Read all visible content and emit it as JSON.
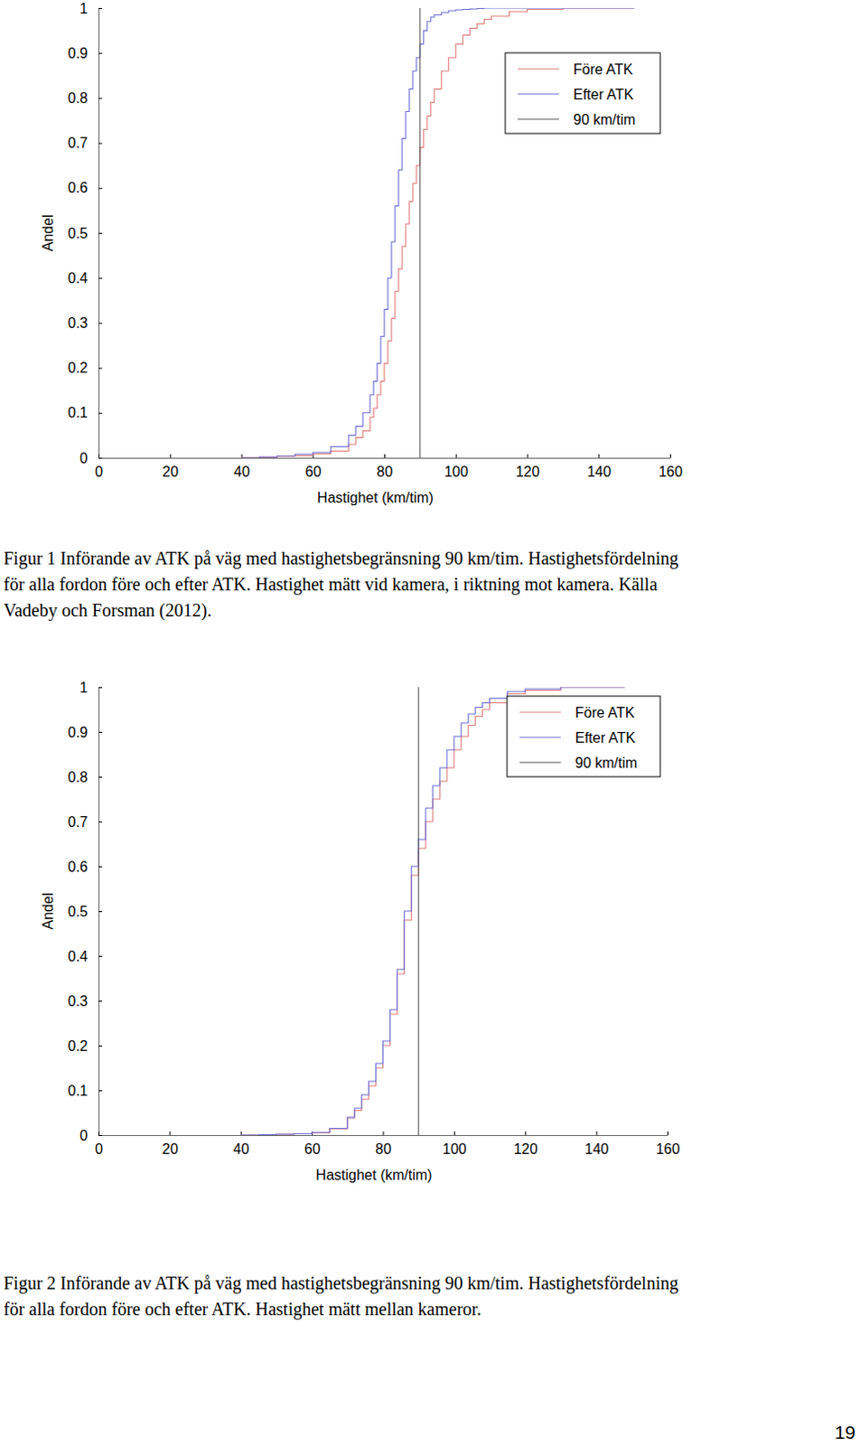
{
  "chart_data": [
    {
      "type": "line",
      "line_style": "step",
      "caption": [
        "Figur 1 Införande av ATK på väg med hastighetsbegränsning 90 km/tim. Hastighetsfördelning",
        "för alla fordon före och efter ATK. Hastighet mätt vid kamera, i riktning mot kamera. Källa",
        "Vadeby och Forsman (2012)."
      ],
      "xlabel": "Hastighet (km/tim)",
      "ylabel": "Andel",
      "x": [
        40,
        45,
        50,
        55,
        60,
        65,
        70,
        72,
        74,
        76,
        77,
        78,
        79,
        80,
        81,
        82,
        83,
        84,
        85,
        86,
        87,
        88,
        89,
        90,
        91,
        92,
        93,
        94,
        96,
        98,
        100,
        102,
        104,
        106,
        108,
        110,
        115,
        120,
        130,
        150
      ],
      "series": [
        {
          "name": "Före ATK",
          "color": "#e07a7a",
          "values": [
            0,
            0.001,
            0.003,
            0.005,
            0.009,
            0.015,
            0.03,
            0.045,
            0.06,
            0.09,
            0.11,
            0.14,
            0.17,
            0.21,
            0.26,
            0.31,
            0.37,
            0.42,
            0.47,
            0.52,
            0.57,
            0.61,
            0.65,
            0.69,
            0.73,
            0.76,
            0.79,
            0.82,
            0.86,
            0.89,
            0.92,
            0.94,
            0.955,
            0.965,
            0.975,
            0.982,
            0.992,
            0.997,
            1,
            1
          ]
        },
        {
          "name": "Efter ATK",
          "color": "#6b6bd6",
          "values": [
            0,
            0.002,
            0.004,
            0.008,
            0.012,
            0.025,
            0.05,
            0.07,
            0.1,
            0.14,
            0.17,
            0.21,
            0.27,
            0.33,
            0.4,
            0.48,
            0.56,
            0.64,
            0.71,
            0.77,
            0.82,
            0.86,
            0.89,
            0.92,
            0.95,
            0.97,
            0.98,
            0.985,
            0.99,
            0.994,
            0.996,
            0.997,
            0.998,
            0.999,
            1,
            1,
            1,
            1,
            1,
            1
          ]
        },
        {
          "name": "90 km/tim",
          "color": "#555555",
          "x": [
            90,
            90
          ],
          "values": [
            0,
            1
          ]
        }
      ],
      "xlim": [
        0,
        160
      ],
      "xticks": [
        0,
        20,
        40,
        60,
        80,
        100,
        120,
        140,
        160
      ],
      "ylim": [
        0,
        1
      ],
      "yticks": [
        0,
        0.1,
        0.2,
        0.3,
        0.4,
        0.5,
        0.6,
        0.7,
        0.8,
        0.9,
        1
      ],
      "legend": "upper right",
      "grid": false
    },
    {
      "type": "line",
      "line_style": "step",
      "caption": [
        "Figur 2 Införande av ATK på väg med hastighetsbegränsning 90 km/tim. Hastighetsfördelning",
        "för alla fordon före och efter ATK. Hastighet mätt mellan kameror."
      ],
      "xlabel": "Hastighet (km/tim)",
      "ylabel": "Andel",
      "x": [
        40,
        45,
        50,
        55,
        60,
        65,
        70,
        72,
        74,
        76,
        78,
        80,
        82,
        84,
        86,
        88,
        90,
        92,
        94,
        96,
        98,
        100,
        102,
        104,
        106,
        108,
        110,
        115,
        120,
        130,
        148
      ],
      "series": [
        {
          "name": "Före ATK",
          "color": "#e07a7a",
          "values": [
            0,
            0.001,
            0.002,
            0.003,
            0.005,
            0.014,
            0.038,
            0.055,
            0.08,
            0.11,
            0.15,
            0.2,
            0.27,
            0.36,
            0.48,
            0.58,
            0.64,
            0.7,
            0.75,
            0.79,
            0.82,
            0.86,
            0.89,
            0.915,
            0.935,
            0.95,
            0.965,
            0.985,
            0.993,
            1,
            1
          ]
        },
        {
          "name": "Efter ATK",
          "color": "#6b6bd6",
          "values": [
            0,
            0.001,
            0.002,
            0.003,
            0.006,
            0.015,
            0.04,
            0.06,
            0.09,
            0.12,
            0.16,
            0.21,
            0.28,
            0.37,
            0.5,
            0.6,
            0.66,
            0.73,
            0.78,
            0.82,
            0.86,
            0.89,
            0.92,
            0.94,
            0.955,
            0.965,
            0.975,
            0.99,
            0.996,
            1,
            1
          ]
        },
        {
          "name": "90 km/tim",
          "color": "#555555",
          "x": [
            90,
            90
          ],
          "values": [
            0,
            1
          ]
        }
      ],
      "xlim": [
        0,
        160
      ],
      "xticks": [
        0,
        20,
        40,
        60,
        80,
        100,
        120,
        140,
        160
      ],
      "ylim": [
        0,
        1
      ],
      "yticks": [
        0,
        0.1,
        0.2,
        0.3,
        0.4,
        0.5,
        0.6,
        0.7,
        0.8,
        0.9,
        1
      ],
      "legend": "upper right",
      "grid": false
    }
  ],
  "page_number": 19
}
